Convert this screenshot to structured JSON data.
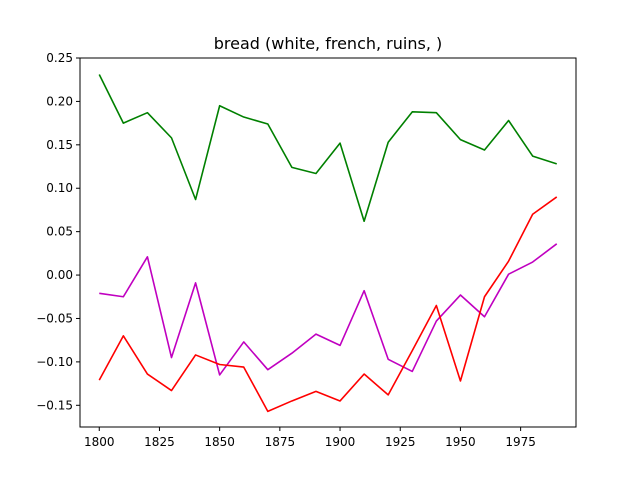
{
  "chart_data": {
    "type": "line",
    "title": "bread (white, french, ruins, )",
    "xlabel": "",
    "ylabel": "",
    "x": [
      1800,
      1810,
      1820,
      1830,
      1840,
      1850,
      1860,
      1870,
      1880,
      1890,
      1900,
      1910,
      1920,
      1930,
      1940,
      1950,
      1960,
      1970,
      1980,
      1990
    ],
    "xlim": [
      1792,
      1998
    ],
    "ylim": [
      -0.175,
      0.25
    ],
    "xticks": [
      1800,
      1825,
      1850,
      1875,
      1900,
      1925,
      1950,
      1975
    ],
    "xtick_labels": [
      "1800",
      "1825",
      "1850",
      "1875",
      "1900",
      "1925",
      "1950",
      "1975"
    ],
    "yticks": [
      -0.15,
      -0.1,
      -0.05,
      0.0,
      0.05,
      0.1,
      0.15,
      0.2,
      0.25
    ],
    "ytick_labels": [
      "−0.15",
      "−0.10",
      "−0.05",
      "0.00",
      "0.05",
      "0.10",
      "0.15",
      "0.20",
      "0.25"
    ],
    "grid": false,
    "legend": "none",
    "series": [
      {
        "color": "#008000",
        "values": [
          0.231,
          0.175,
          0.187,
          0.158,
          0.087,
          0.195,
          0.182,
          0.174,
          0.124,
          0.117,
          0.152,
          0.062,
          0.153,
          0.188,
          0.187,
          0.156,
          0.144,
          0.178,
          0.137,
          0.128
        ]
      },
      {
        "color": "#c000c0",
        "values": [
          -0.021,
          -0.025,
          0.021,
          -0.095,
          -0.009,
          -0.115,
          -0.077,
          -0.109,
          -0.09,
          -0.068,
          -0.081,
          -0.018,
          -0.097,
          -0.111,
          -0.053,
          -0.023,
          -0.048,
          0.001,
          0.015,
          0.036
        ]
      },
      {
        "color": "#ff0000",
        "values": [
          -0.121,
          -0.07,
          -0.114,
          -0.133,
          -0.092,
          -0.103,
          -0.106,
          -0.157,
          -0.145,
          -0.134,
          -0.145,
          -0.114,
          -0.138,
          -0.087,
          -0.035,
          -0.122,
          -0.025,
          0.016,
          0.07,
          0.09
        ]
      }
    ]
  }
}
